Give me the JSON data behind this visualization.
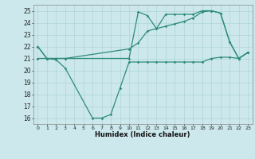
{
  "color": "#2e8b7a",
  "bg_color": "#cce8ec",
  "grid_color": "#aed4d8",
  "xlabel": "Humidex (Indice chaleur)",
  "ylim": [
    15.5,
    25.5
  ],
  "xlim": [
    -0.5,
    23.5
  ],
  "yticks": [
    16,
    17,
    18,
    19,
    20,
    21,
    22,
    23,
    24,
    25
  ],
  "xticks": [
    0,
    1,
    2,
    3,
    4,
    5,
    6,
    7,
    8,
    9,
    10,
    11,
    12,
    13,
    14,
    15,
    16,
    17,
    18,
    19,
    20,
    21,
    22,
    23
  ],
  "line1_x": [
    0,
    1,
    2,
    3,
    10,
    11,
    12,
    13,
    14,
    15,
    16,
    17,
    18,
    19,
    20,
    21,
    22,
    23
  ],
  "line1_y": [
    22.0,
    21.0,
    21.0,
    21.0,
    21.8,
    22.3,
    23.3,
    23.5,
    23.7,
    23.9,
    24.1,
    24.4,
    24.9,
    25.0,
    24.8,
    22.4,
    21.0,
    21.5
  ],
  "line2_x": [
    0,
    1,
    2,
    3,
    10,
    11,
    12,
    13,
    14,
    15,
    16,
    17,
    18,
    19,
    20,
    21,
    22,
    23
  ],
  "line2_y": [
    22.0,
    21.0,
    21.0,
    21.0,
    21.0,
    24.9,
    24.6,
    23.5,
    24.7,
    24.7,
    24.7,
    24.7,
    25.0,
    25.0,
    24.8,
    22.4,
    21.0,
    21.5
  ],
  "line3_x": [
    0,
    1,
    2,
    3,
    6,
    7,
    8,
    9,
    10,
    11,
    12,
    13,
    14,
    15,
    16,
    17,
    18,
    19,
    20,
    21,
    22,
    23
  ],
  "line3_y": [
    21.0,
    21.0,
    20.9,
    20.2,
    16.0,
    16.0,
    16.3,
    18.5,
    20.7,
    20.7,
    20.7,
    20.7,
    20.7,
    20.7,
    20.7,
    20.7,
    20.7,
    21.0,
    21.1,
    21.1,
    21.0,
    21.5
  ]
}
